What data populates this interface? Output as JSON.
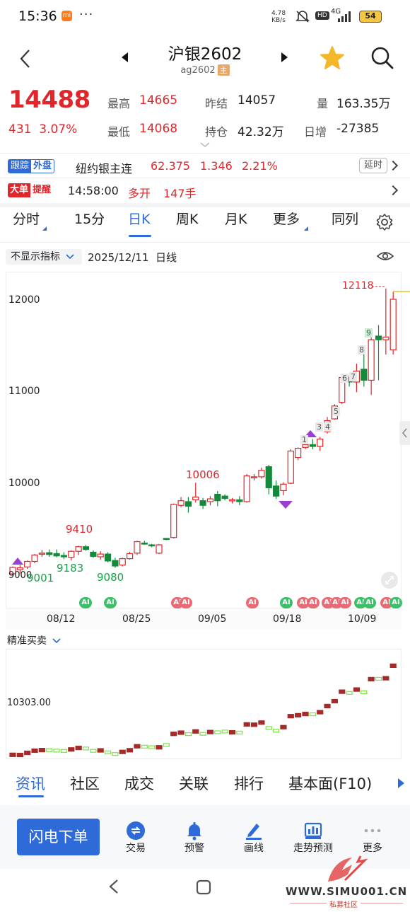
{
  "status_bar": {
    "time": "15:36",
    "carrier_badge": "mi",
    "more_dots": "···",
    "net_speed_value": "4.78",
    "net_speed_unit": "KB/s",
    "hd_badge": "HD",
    "network": "4G",
    "battery": "54"
  },
  "header": {
    "title": "沪银2602",
    "code": "ag2602",
    "main_badge": "主",
    "icons": [
      "back-icon",
      "prev-contract-icon",
      "next-contract-icon",
      "star-icon",
      "search-icon"
    ]
  },
  "quote": {
    "last_price": "14488",
    "change": "431",
    "change_pct": "3.07%",
    "high_label": "最高",
    "high": "14665",
    "low_label": "最低",
    "low": "14068",
    "prev_settle_label": "昨结",
    "prev_settle": "14057",
    "open_interest_label": "持仓",
    "open_interest": "42.32万",
    "volume_label": "量",
    "volume": "163.35万",
    "daily_change_label": "日增",
    "daily_change": "-27385"
  },
  "external_row": {
    "tag_a": "跟踪",
    "tag_b": "外盘",
    "name": "纽约银主连",
    "price": "62.375",
    "change": "1.346",
    "change_pct": "2.21%",
    "delay_label": "延时"
  },
  "big_order_row": {
    "tag_a": "大单",
    "tag_b": "提醒",
    "time": "14:58:00",
    "action": "多开",
    "size": "147手"
  },
  "period_tabs": [
    "分时",
    "15分",
    "日K",
    "周K",
    "月K",
    "更多",
    "同列"
  ],
  "active_period": "日K",
  "chart_header": {
    "indicator_select": "不显示指标",
    "date": "2025/12/11",
    "period_label": "日线"
  },
  "chart_data": {
    "type": "candlestick",
    "y_ticks": [
      10000,
      11000,
      12000
    ],
    "y_tick_labels": [
      "10000",
      "11000",
      "12000"
    ],
    "x_tick_labels": [
      "08/12",
      "08/25",
      "09/05",
      "09/18",
      "10/09"
    ],
    "annotations": [
      {
        "text": "9410",
        "value": 9410
      },
      {
        "text": "9183",
        "value": 9183
      },
      {
        "text": "9080",
        "value": 9080
      },
      {
        "text": "9001",
        "value": 9001
      },
      {
        "text": "10006",
        "value": 10006
      },
      {
        "text": "12118",
        "value": 12118
      }
    ],
    "bottom_left_label": "9000",
    "sequence_markers": [
      "1",
      "3",
      "4",
      "5",
      "6",
      "7",
      "8",
      "9"
    ],
    "candles": [
      {
        "o": 9015,
        "h": 9095,
        "l": 8985,
        "c": 9085
      },
      {
        "o": 9060,
        "h": 9110,
        "l": 9020,
        "c": 9080
      },
      {
        "o": 9090,
        "h": 9160,
        "l": 9070,
        "c": 9150
      },
      {
        "o": 9150,
        "h": 9230,
        "l": 9130,
        "c": 9220
      },
      {
        "o": 9230,
        "h": 9275,
        "l": 9200,
        "c": 9240
      },
      {
        "o": 9245,
        "h": 9280,
        "l": 9200,
        "c": 9225
      },
      {
        "o": 9235,
        "h": 9280,
        "l": 9195,
        "c": 9210
      },
      {
        "o": 9215,
        "h": 9250,
        "l": 9175,
        "c": 9200
      },
      {
        "o": 9195,
        "h": 9270,
        "l": 9160,
        "c": 9260
      },
      {
        "o": 9260,
        "h": 9320,
        "l": 9220,
        "c": 9310
      },
      {
        "o": 9310,
        "h": 9330,
        "l": 9265,
        "c": 9280
      },
      {
        "o": 9250,
        "h": 9270,
        "l": 9190,
        "c": 9205
      },
      {
        "o": 9200,
        "h": 9260,
        "l": 9170,
        "c": 9230
      },
      {
        "o": 9230,
        "h": 9250,
        "l": 9140,
        "c": 9155
      },
      {
        "o": 9160,
        "h": 9190,
        "l": 9080,
        "c": 9100
      },
      {
        "o": 9110,
        "h": 9190,
        "l": 9095,
        "c": 9180
      },
      {
        "o": 9180,
        "h": 9255,
        "l": 9170,
        "c": 9235
      },
      {
        "o": 9240,
        "h": 9375,
        "l": 9220,
        "c": 9365
      },
      {
        "o": 9350,
        "h": 9375,
        "l": 9330,
        "c": 9340
      },
      {
        "o": 9330,
        "h": 9340,
        "l": 9305,
        "c": 9325
      },
      {
        "o": 9240,
        "h": 9340,
        "l": 9230,
        "c": 9330
      },
      {
        "o": 9400,
        "h": 9405,
        "l": 9380,
        "c": 9395
      },
      {
        "o": 9410,
        "h": 9780,
        "l": 9400,
        "c": 9770
      },
      {
        "o": 9760,
        "h": 9850,
        "l": 9740,
        "c": 9810
      },
      {
        "o": 9800,
        "h": 9850,
        "l": 9680,
        "c": 9750
      },
      {
        "o": 9820,
        "h": 10006,
        "l": 9790,
        "c": 9850
      },
      {
        "o": 9810,
        "h": 9840,
        "l": 9720,
        "c": 9760
      },
      {
        "o": 9800,
        "h": 9860,
        "l": 9760,
        "c": 9830
      },
      {
        "o": 9880,
        "h": 9915,
        "l": 9750,
        "c": 9810
      },
      {
        "o": 9860,
        "h": 9880,
        "l": 9815,
        "c": 9835
      },
      {
        "o": 9810,
        "h": 9840,
        "l": 9780,
        "c": 9820
      },
      {
        "o": 9820,
        "h": 9860,
        "l": 9760,
        "c": 9800
      },
      {
        "o": 9800,
        "h": 10100,
        "l": 9790,
        "c": 10080
      },
      {
        "o": 10060,
        "h": 10100,
        "l": 10030,
        "c": 10070
      },
      {
        "o": 10070,
        "h": 10170,
        "l": 10050,
        "c": 10140
      },
      {
        "o": 10180,
        "h": 10200,
        "l": 9880,
        "c": 9950
      },
      {
        "o": 9970,
        "h": 10030,
        "l": 9830,
        "c": 9860
      },
      {
        "o": 9920,
        "h": 10010,
        "l": 9870,
        "c": 9990
      },
      {
        "o": 10000,
        "h": 10370,
        "l": 9990,
        "c": 10350
      },
      {
        "o": 10280,
        "h": 10390,
        "l": 10250,
        "c": 10380
      },
      {
        "o": 10390,
        "h": 10470,
        "l": 10370,
        "c": 10420
      },
      {
        "o": 10420,
        "h": 10480,
        "l": 10370,
        "c": 10400
      },
      {
        "o": 10400,
        "h": 10500,
        "l": 10350,
        "c": 10480
      },
      {
        "o": 10560,
        "h": 10720,
        "l": 10540,
        "c": 10680
      },
      {
        "o": 10700,
        "h": 10860,
        "l": 10690,
        "c": 10840
      },
      {
        "o": 10880,
        "h": 11170,
        "l": 10860,
        "c": 11150
      },
      {
        "o": 11150,
        "h": 11170,
        "l": 11050,
        "c": 11100
      },
      {
        "o": 11100,
        "h": 11300,
        "l": 10990,
        "c": 11220
      },
      {
        "o": 11240,
        "h": 11470,
        "l": 11050,
        "c": 11120
      },
      {
        "o": 11120,
        "h": 11620,
        "l": 10960,
        "c": 11560
      },
      {
        "o": 11600,
        "h": 11720,
        "l": 11120,
        "c": 11560
      },
      {
        "o": 11560,
        "h": 12118,
        "l": 11400,
        "c": 11590
      },
      {
        "o": 11450,
        "h": 12080,
        "l": 11400,
        "c": 12000
      }
    ]
  },
  "sub_chart": {
    "label": "精准买卖",
    "ref_value": "10303.00"
  },
  "bottom_tabs": [
    "资讯",
    "社区",
    "成交",
    "关联",
    "排行",
    "基本面(F10)"
  ],
  "active_bottom_tab": "资讯",
  "toolbar": {
    "flash_order": "闪电下单",
    "items": [
      {
        "label": "交易",
        "icon": "trade-icon"
      },
      {
        "label": "预警",
        "icon": "bell-icon"
      },
      {
        "label": "画线",
        "icon": "draw-line-icon"
      },
      {
        "label": "走势预测",
        "icon": "forecast-icon"
      },
      {
        "label": "更多",
        "icon": "more-icon"
      }
    ]
  },
  "watermark": {
    "url": "WWW.SIMU001.CN",
    "subtitle": "私募社区"
  },
  "colors": {
    "up": "#e0262b",
    "down": "#168a3c",
    "accent": "#2f6bd8"
  }
}
